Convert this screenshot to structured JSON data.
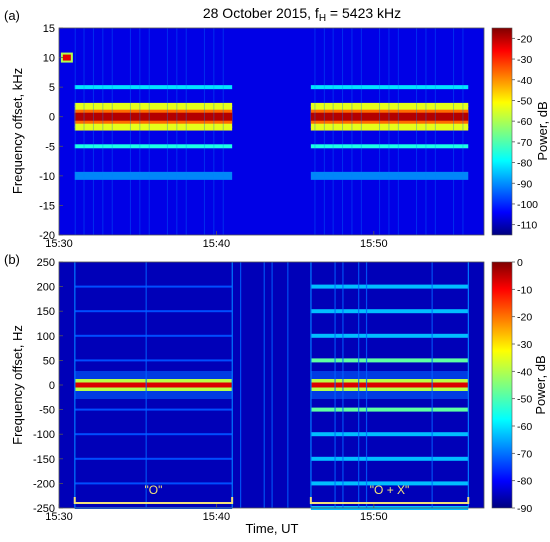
{
  "figure_title": "28 October 2015, f",
  "figure_title_sub": "H",
  "figure_title_tail": " = 5423 kHz",
  "x_axis_label": "Time, UT",
  "chart_data": [
    {
      "panel": "(a)",
      "type": "heatmap",
      "title": "",
      "xlabel": "",
      "ylabel": "Frequency offset, kHz",
      "x_ticks": [
        "15:30",
        "15:40",
        "15:50"
      ],
      "x_range": [
        "15:30",
        "15:57"
      ],
      "y_ticks": [
        15,
        10,
        5,
        0,
        -5,
        -10,
        -15,
        -20
      ],
      "ylim": [
        -20,
        15
      ],
      "colorbar": {
        "label": "Power, dB",
        "ticks": [
          -20,
          -30,
          -40,
          -50,
          -60,
          -70,
          -80,
          -90,
          -100,
          -110
        ],
        "range": [
          -115,
          -15
        ]
      },
      "background_level_db": -105,
      "on_intervals": [
        [
          "15:31",
          "15:41"
        ],
        [
          "15:46",
          "15:56"
        ]
      ],
      "features": [
        {
          "name": "carrier",
          "y": 0,
          "level_db": -20
        },
        {
          "name": "sideband",
          "y": 2,
          "level_db": -55
        },
        {
          "name": "sideband",
          "y": -2,
          "level_db": -55
        },
        {
          "name": "sideband",
          "y": 5,
          "level_db": -80
        },
        {
          "name": "sideband",
          "y": -5,
          "level_db": -75
        },
        {
          "name": "band",
          "y": -10,
          "level_db": -85
        },
        {
          "name": "spot",
          "x": "15:30:30",
          "y": 10,
          "level_db": -25
        }
      ]
    },
    {
      "panel": "(b)",
      "type": "heatmap",
      "title": "",
      "xlabel": "Time, UT",
      "ylabel": "Frequency offset, Hz",
      "x_ticks": [
        "15:30",
        "15:40",
        "15:50"
      ],
      "x_range": [
        "15:30",
        "15:57"
      ],
      "y_ticks": [
        250,
        200,
        150,
        100,
        50,
        0,
        -50,
        -100,
        -150,
        -200,
        -250
      ],
      "ylim": [
        -250,
        250
      ],
      "colorbar": {
        "label": "Power, dB",
        "ticks": [
          0,
          -10,
          -20,
          -30,
          -40,
          -50,
          -60,
          -70,
          -80,
          -90
        ],
        "range": [
          -90,
          0
        ]
      },
      "background_level_db": -85,
      "on_intervals": [
        [
          "15:31",
          "15:41"
        ],
        [
          "15:46",
          "15:56"
        ]
      ],
      "harmonic_lines_hz": [
        -250,
        -200,
        -150,
        -100,
        -50,
        0,
        50,
        100,
        150,
        200
      ],
      "annotations": [
        {
          "text": "\"O\"",
          "from": "15:31",
          "to": "15:41"
        },
        {
          "text": "\"O + X\"",
          "from": "15:46",
          "to": "15:56"
        }
      ]
    }
  ]
}
